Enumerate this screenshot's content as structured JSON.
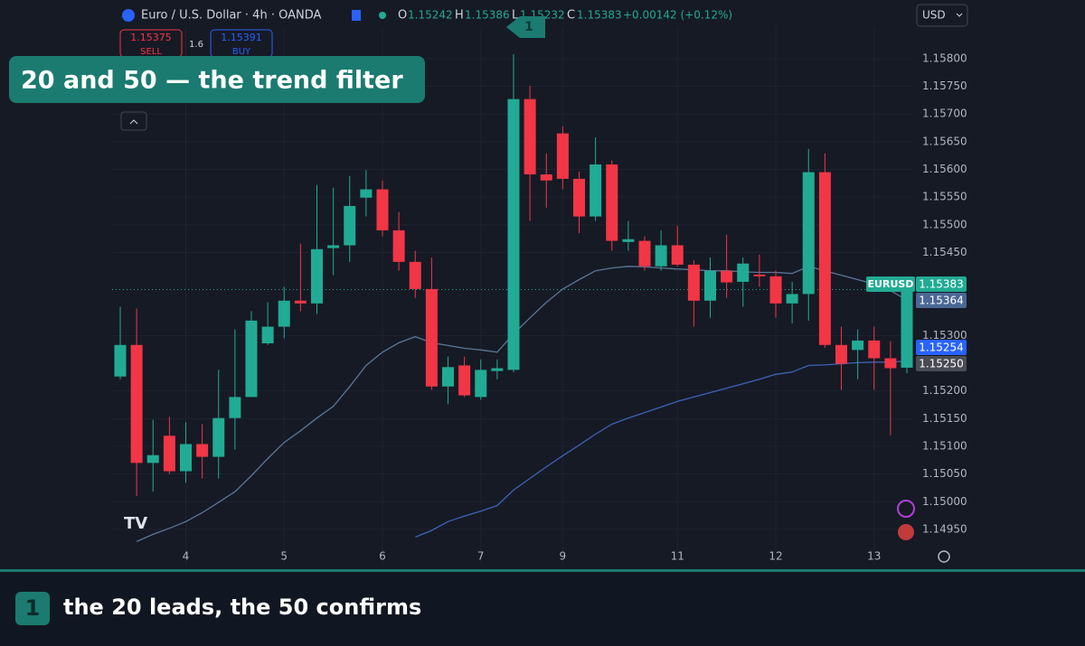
{
  "header": {
    "symbol": "Euro / U.S. Dollar · 4h · OANDA",
    "o_label": "O",
    "open": "1.15242",
    "h_label": "H",
    "high": "1.15386",
    "l_label": "L",
    "low": "1.15232",
    "c_label": "C",
    "close": "1.15383",
    "change": "+0.00142 (+0.12%)",
    "currency": "USD"
  },
  "trade": {
    "sell_price": "1.15375",
    "sell": "SELL",
    "spread": "1.6",
    "buy_price": "1.15391",
    "buy": "BUY"
  },
  "overlay": {
    "title": "20 and 50  —  the trend filter",
    "marker": "1"
  },
  "footer": {
    "badge": "1",
    "caption": "the 20 leads, the 50 confirms"
  },
  "price_labels": {
    "symbol": "EURUSD",
    "last": "1.15383",
    "ma20": "1.15364",
    "ma50": "1.15254",
    "other": "1.15250"
  },
  "chart_data": {
    "type": "candlestick",
    "categories": [
      null,
      null,
      null,
      null,
      "4",
      null,
      null,
      null,
      null,
      null,
      "5",
      null,
      null,
      null,
      null,
      null,
      "6",
      null,
      null,
      null,
      null,
      null,
      "7",
      null,
      null,
      null,
      null,
      "9",
      null,
      null,
      null,
      null,
      null,
      null,
      "11",
      null,
      null,
      null,
      null,
      null,
      "12",
      null,
      null,
      null,
      null,
      null,
      "13",
      null,
      null
    ],
    "open": [
      1.15226,
      1.15283,
      1.1507,
      1.15119,
      1.15055,
      1.15104,
      1.15081,
      1.15151,
      1.15189,
      1.15286,
      1.15316,
      1.15363,
      1.15358,
      1.15458,
      1.15463,
      1.15549,
      1.15564,
      1.1549,
      1.15433,
      1.15384,
      1.15208,
      1.15246,
      1.15189,
      1.15236,
      1.15238,
      1.15727,
      1.15591,
      1.15665,
      1.15583,
      1.15515,
      1.15609,
      1.15469,
      1.15471,
      1.15425,
      1.15463,
      1.15428,
      1.15363,
      1.15417,
      1.15397,
      1.1541,
      1.15407,
      1.15358,
      1.15375,
      1.15595,
      1.15283,
      1.15274,
      1.15291,
      1.15259,
      1.15242
    ],
    "high": [
      1.15352,
      1.15349,
      1.15148,
      1.15153,
      1.15143,
      1.1514,
      1.15238,
      1.15311,
      1.15344,
      1.1536,
      1.15388,
      1.15466,
      1.15572,
      1.15567,
      1.15588,
      1.15599,
      1.1558,
      1.15523,
      1.15453,
      1.15441,
      1.15262,
      1.15262,
      1.15257,
      1.15257,
      1.15808,
      1.15751,
      1.15629,
      1.15678,
      1.15596,
      1.15658,
      1.15616,
      1.15507,
      1.15479,
      1.1549,
      1.15498,
      1.15436,
      1.15441,
      1.15482,
      1.15441,
      1.15446,
      1.15417,
      1.15397,
      1.15637,
      1.15629,
      1.15316,
      1.15311,
      1.15316,
      1.1529,
      1.15386
    ],
    "low": [
      1.15221,
      1.1501,
      1.15018,
      1.1505,
      1.15034,
      1.15042,
      1.15042,
      1.15094,
      1.15189,
      1.15283,
      1.15295,
      1.15344,
      1.15339,
      1.15409,
      1.15433,
      1.15515,
      1.15479,
      1.15417,
      1.15368,
      1.15202,
      1.15176,
      1.15189,
      1.15184,
      1.15221,
      1.15234,
      1.15507,
      1.15531,
      1.15564,
      1.15485,
      1.15507,
      1.15453,
      1.15453,
      1.15417,
      1.15417,
      1.15425,
      1.15316,
      1.15332,
      1.15368,
      1.15352,
      1.15388,
      1.15332,
      1.15322,
      1.15327,
      1.15278,
      1.15202,
      1.15221,
      1.15202,
      1.1512,
      1.15232
    ],
    "close": [
      1.15283,
      1.1507,
      1.15084,
      1.15055,
      1.15104,
      1.15081,
      1.15151,
      1.15189,
      1.15327,
      1.15316,
      1.15363,
      1.15358,
      1.15456,
      1.15463,
      1.15534,
      1.15564,
      1.1549,
      1.15433,
      1.15384,
      1.15208,
      1.15243,
      1.15192,
      1.15238,
      1.15241,
      1.15727,
      1.15591,
      1.1558,
      1.15583,
      1.15515,
      1.15609,
      1.15471,
      1.15474,
      1.15425,
      1.15463,
      1.15428,
      1.15363,
      1.15417,
      1.15396,
      1.1543,
      1.15407,
      1.15358,
      1.15375,
      1.15595,
      1.15283,
      1.15249,
      1.15291,
      1.15259,
      1.15241,
      1.15383
    ],
    "up_color": "#22ab94",
    "down_color": "#f23645",
    "ma_lines": [
      {
        "color": "#5b7696",
        "values": [
          null,
          1.14928,
          1.14941,
          1.14952,
          1.14964,
          1.1498,
          1.14999,
          1.15018,
          1.15047,
          1.15078,
          1.15107,
          1.15128,
          1.15151,
          1.15172,
          1.15208,
          1.15246,
          1.1527,
          1.15287,
          1.15298,
          1.15287,
          1.15282,
          1.15277,
          1.15274,
          1.1527,
          1.15303,
          1.15332,
          1.1536,
          1.15384,
          1.15401,
          1.15417,
          1.15422,
          1.15425,
          1.15424,
          1.15422,
          1.1542,
          1.15419,
          1.15417,
          1.15417,
          1.15415,
          1.15414,
          1.15414,
          1.15412,
          1.15425,
          1.15417,
          1.15409,
          1.15401,
          1.15393,
          1.15381,
          1.15364
        ]
      },
      {
        "color": "#3d63b8",
        "values": [
          null,
          null,
          null,
          null,
          null,
          null,
          null,
          null,
          null,
          null,
          null,
          null,
          null,
          null,
          null,
          null,
          null,
          null,
          1.14936,
          1.14948,
          1.14964,
          1.14974,
          1.14983,
          1.14993,
          1.15021,
          1.15042,
          1.15063,
          1.15083,
          1.15102,
          1.15122,
          1.1514,
          1.15151,
          1.15161,
          1.15171,
          1.15181,
          1.15189,
          1.15197,
          1.15205,
          1.15213,
          1.15221,
          1.1523,
          1.15234,
          1.15246,
          1.15247,
          1.15249,
          1.15251,
          1.15252,
          1.15252,
          1.15254
        ]
      }
    ],
    "ylim": [
      1.14927,
      1.15857
    ],
    "yticks": [
      {
        "value": 1.158,
        "label": "1.15800"
      },
      {
        "value": 1.1575,
        "label": "1.15750"
      },
      {
        "value": 1.157,
        "label": "1.15700"
      },
      {
        "value": 1.1565,
        "label": "1.15650"
      },
      {
        "value": 1.156,
        "label": "1.15600"
      },
      {
        "value": 1.1555,
        "label": "1.15550"
      },
      {
        "value": 1.155,
        "label": "1.15500"
      },
      {
        "value": 1.1545,
        "label": "1.15450"
      },
      {
        "value": 1.153,
        "label": "1.15300"
      },
      {
        "value": 1.152,
        "label": "1.15200"
      },
      {
        "value": 1.1515,
        "label": "1.15150"
      },
      {
        "value": 1.151,
        "label": "1.15100"
      },
      {
        "value": 1.1505,
        "label": "1.15050"
      },
      {
        "value": 1.15,
        "label": "1.15000"
      },
      {
        "value": 1.1495,
        "label": "1.14950"
      }
    ],
    "grid": true
  }
}
